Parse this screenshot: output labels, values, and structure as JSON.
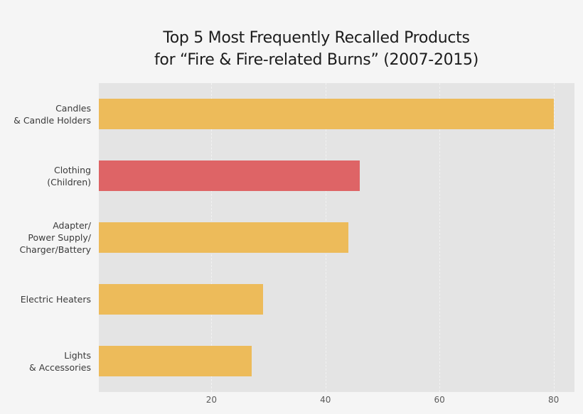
{
  "chart_data": {
    "type": "bar",
    "orientation": "horizontal",
    "title": "Top 5 Most Frequently Recalled Products\nfor “Fire & Fire-related Burns” (2007-2015)",
    "title_lines": [
      "Top 5 Most Frequently Recalled Products",
      "for “Fire & Fire-related Burns” (2007-2015)"
    ],
    "xlabel": "",
    "ylabel": "",
    "categories": [
      "Candles\n& Candle Holders",
      "Clothing\n(Children)",
      "Adapter/\nPower Supply/\nCharger/Battery",
      "Electric Heaters",
      "Lights\n& Accessories"
    ],
    "values": [
      80,
      46,
      44,
      29,
      27
    ],
    "bar_colors": [
      "#edbb5a",
      "#de6466",
      "#edbb5a",
      "#edbb5a",
      "#edbb5a"
    ],
    "highlight_index": 1,
    "xlim": [
      0,
      83.5
    ],
    "xticks": [
      20,
      40,
      60,
      80
    ],
    "grid": true,
    "legend": null
  },
  "colors": {
    "background": "#f5f5f5",
    "panel": "#e4e4e4",
    "bar_default": "#edbb5a",
    "bar_highlight": "#de6466"
  }
}
